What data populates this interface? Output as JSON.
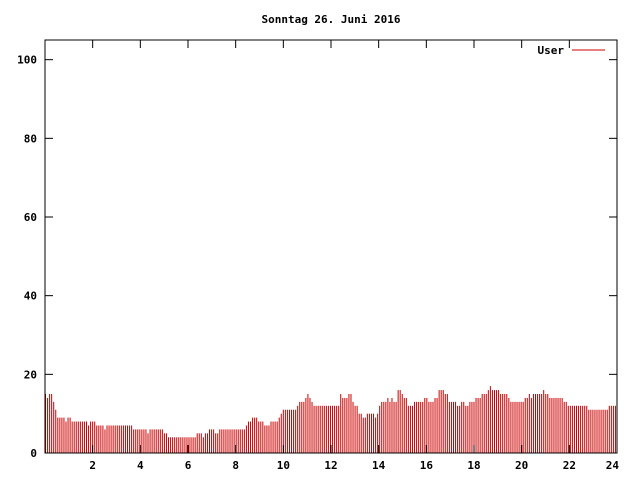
{
  "chart_data": {
    "type": "bar",
    "title": "Sonntag 26. Juni 2016",
    "xlabel": "",
    "ylabel": "",
    "xlim": [
      0,
      24
    ],
    "ylim": [
      0,
      105
    ],
    "x_ticks": [
      2,
      4,
      6,
      8,
      10,
      12,
      14,
      16,
      18,
      20,
      22,
      24
    ],
    "y_ticks": [
      0,
      20,
      40,
      60,
      80,
      100
    ],
    "legend_position": "top-right",
    "grid": false,
    "bar_color": "#cc0000",
    "series": [
      {
        "name": "User",
        "color": "#cc0000",
        "values": [
          15,
          14,
          15,
          15,
          13,
          11,
          9,
          9,
          9,
          9,
          8,
          9,
          9,
          8,
          8,
          8,
          8,
          8,
          8,
          8,
          8,
          7,
          8,
          8,
          8,
          7,
          7,
          7,
          7,
          6,
          7,
          7,
          7,
          7,
          7,
          7,
          7,
          7,
          7,
          7,
          7,
          7,
          7,
          6,
          6,
          6,
          6,
          6,
          6,
          6,
          5,
          6,
          6,
          6,
          6,
          6,
          6,
          6,
          5,
          5,
          4,
          4,
          4,
          4,
          4,
          4,
          4,
          4,
          4,
          4,
          4,
          4,
          4,
          4,
          5,
          5,
          5,
          4,
          5,
          5,
          6,
          6,
          6,
          5,
          5,
          6,
          6,
          6,
          6,
          6,
          6,
          6,
          6,
          6,
          6,
          6,
          6,
          6,
          7,
          8,
          8,
          9,
          9,
          9,
          8,
          8,
          8,
          7,
          7,
          7,
          8,
          8,
          8,
          8,
          9,
          10,
          11,
          11,
          11,
          11,
          11,
          11,
          11,
          12,
          13,
          13,
          13,
          14,
          15,
          14,
          13,
          12,
          12,
          12,
          12,
          12,
          12,
          12,
          12,
          12,
          12,
          12,
          12,
          12,
          15,
          14,
          14,
          14,
          15,
          15,
          13,
          12,
          12,
          10,
          10,
          9,
          9,
          10,
          10,
          10,
          10,
          9,
          10,
          12,
          13,
          13,
          13,
          14,
          13,
          14,
          13,
          13,
          16,
          16,
          15,
          14,
          14,
          12,
          12,
          12,
          13,
          13,
          13,
          13,
          13,
          14,
          14,
          13,
          13,
          13,
          14,
          14,
          16,
          16,
          16,
          15,
          15,
          13,
          13,
          13,
          13,
          12,
          12,
          13,
          13,
          12,
          12,
          13,
          13,
          13,
          14,
          14,
          14,
          15,
          15,
          15,
          16,
          17,
          16,
          16,
          16,
          16,
          15,
          15,
          15,
          15,
          14,
          13,
          13,
          13,
          13,
          13,
          13,
          13,
          14,
          14,
          15,
          14,
          15,
          15,
          15,
          15,
          15,
          16,
          15,
          15,
          14,
          14,
          14,
          14,
          14,
          14,
          14,
          13,
          13,
          12,
          12,
          12,
          12,
          12,
          12,
          12,
          12,
          12,
          12,
          11,
          11,
          11,
          11,
          11,
          11,
          11,
          11,
          11,
          11,
          12,
          12,
          12,
          12
        ]
      }
    ]
  }
}
